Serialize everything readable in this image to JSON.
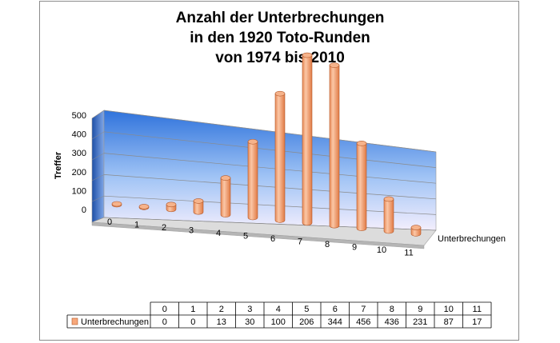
{
  "chart_data": {
    "type": "bar",
    "title": [
      "Anzahl der Unterbrechungen",
      "in den 1920 Toto-Runden",
      "von 1974 bis 2010"
    ],
    "xlabel": "Unterbrechungen",
    "ylabel": "Treffer",
    "ylim": [
      0,
      500
    ],
    "yticks": [
      "0",
      "100",
      "200",
      "300",
      "400",
      "500"
    ],
    "categories": [
      "0",
      "1",
      "2",
      "3",
      "4",
      "5",
      "6",
      "7",
      "8",
      "9",
      "10",
      "11"
    ],
    "series": [
      {
        "name": "Unterbrechungen",
        "values": [
          0,
          0,
          13,
          30,
          100,
          206,
          344,
          456,
          436,
          231,
          87,
          17
        ]
      }
    ],
    "grid": true,
    "legend": "data-table",
    "colors": {
      "bar": "#f7a77a",
      "bar_dark": "#d9784a",
      "wall_top": "#2f73dc",
      "wall_bottom": "#f3eefd",
      "floor": "#d7d7d7"
    }
  }
}
